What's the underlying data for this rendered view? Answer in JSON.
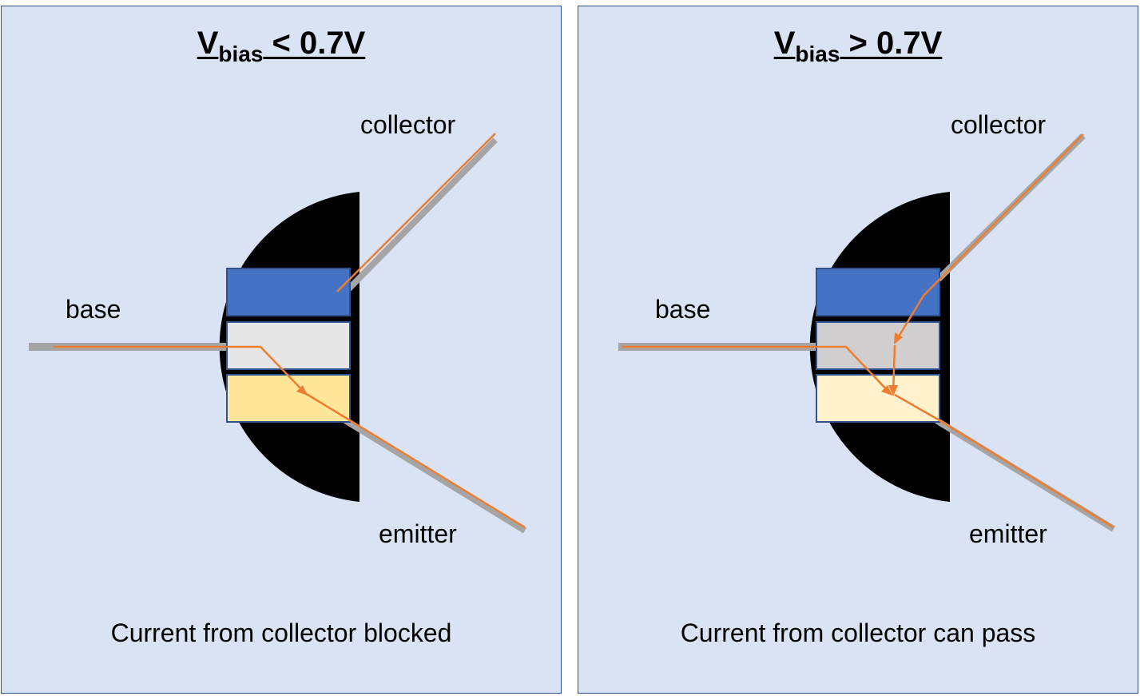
{
  "panels": [
    {
      "title": {
        "v": "V",
        "sub": "bias",
        "rest": " < 0.7V"
      },
      "labels": {
        "collector": "collector",
        "base": "base",
        "emitter": "emitter"
      },
      "caption": "Current from collector blocked",
      "layer_colors": {
        "top": "#4472c4",
        "middle": "#e7e6e6",
        "bottom": "#ffe699"
      }
    },
    {
      "title": {
        "v": "V",
        "sub": "bias",
        "rest": " > 0.7V"
      },
      "labels": {
        "collector": "collector",
        "base": "base",
        "emitter": "emitter"
      },
      "caption": "Current from collector can pass",
      "layer_colors": {
        "top": "#4472c4",
        "middle": "#d0cece",
        "bottom": "#fff2cc"
      }
    }
  ],
  "colors": {
    "panel_bg": "#dae3f3",
    "panel_border": "#2f4f8f",
    "lead": "#a5a5a5",
    "current_path": "#ed7d31",
    "transistor_body": "#000000"
  }
}
